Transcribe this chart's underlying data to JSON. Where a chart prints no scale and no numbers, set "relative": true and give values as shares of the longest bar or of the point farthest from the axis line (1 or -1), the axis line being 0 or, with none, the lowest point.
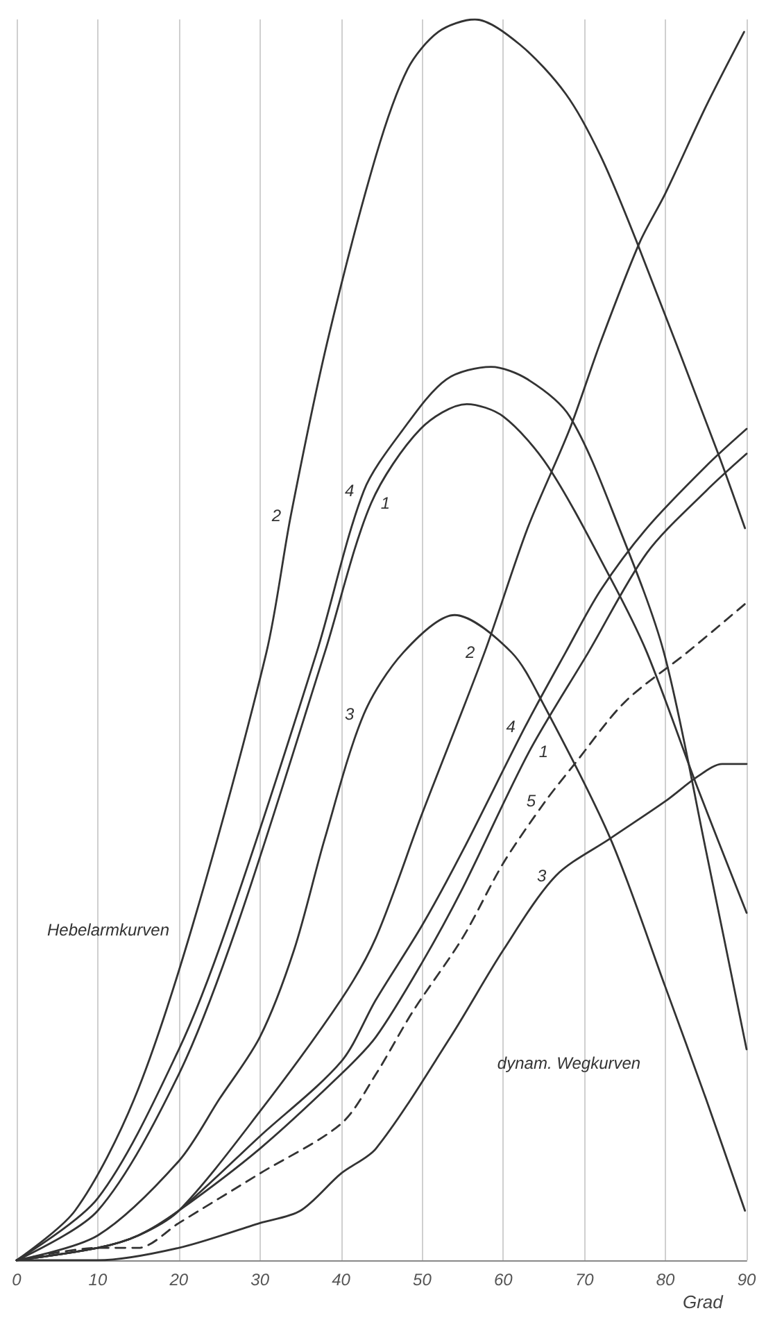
{
  "chart_data": {
    "type": "line",
    "relative": true,
    "xlabel": "Grad",
    "xlim": [
      0,
      90
    ],
    "xticks": [
      0,
      10,
      20,
      30,
      40,
      50,
      60,
      70,
      80,
      90
    ],
    "grid": "x",
    "series": [
      {
        "color": "#333333",
        "x": [
          0,
          7.2,
          14.5,
          21.7,
          30.8,
          33.8,
          38.3,
          44.3,
          48.2,
          52,
          56.5,
          62,
          67.7,
          72,
          76.5,
          86.5,
          89.8
        ],
        "values": [
          0,
          0.04,
          0.13,
          0.27,
          0.49,
          0.6,
          0.74,
          0.89,
          0.96,
          0.99,
          1,
          0.98,
          0.94,
          0.89,
          0.82,
          0.65,
          0.59
        ]
      },
      {
        "color": "#333333",
        "x": [
          0,
          10,
          20,
          26,
          37,
          42.8,
          47.7,
          53,
          58.5,
          63,
          68.2,
          74.3,
          79.8,
          85,
          90
        ],
        "values": [
          0,
          0.05,
          0.17,
          0.27,
          0.49,
          0.62,
          0.67,
          0.71,
          0.72,
          0.71,
          0.68,
          0.59,
          0.49,
          0.33,
          0.17
        ]
      },
      {
        "color": "#333333",
        "x": [
          0,
          10,
          20,
          27.2,
          38,
          43.7,
          49.8,
          55.5,
          60,
          65.5,
          73.2,
          77.7,
          84,
          90
        ],
        "values": [
          0,
          0.04,
          0.15,
          0.27,
          0.49,
          0.61,
          0.67,
          0.69,
          0.68,
          0.64,
          0.55,
          0.49,
          0.38,
          0.28
        ]
      },
      {
        "color": "#333333",
        "x": [
          0,
          10,
          20,
          25,
          30,
          34.2,
          38,
          42.8,
          47.7,
          54,
          61,
          64.8,
          73.2,
          80,
          85,
          89.8
        ],
        "values": [
          0,
          0.02,
          0.08,
          0.13,
          0.18,
          0.25,
          0.34,
          0.44,
          0.49,
          0.52,
          0.49,
          0.45,
          0.34,
          0.22,
          0.13,
          0.04
        ]
      },
      {
        "color": "#333333",
        "x": [
          0,
          10,
          15,
          20,
          30,
          40,
          44.3,
          50,
          57.7,
          63,
          68.2,
          72,
          76.8,
          80,
          85,
          89.7
        ],
        "values": [
          0,
          0.01,
          0.02,
          0.04,
          0.12,
          0.21,
          0.26,
          0.36,
          0.49,
          0.59,
          0.67,
          0.74,
          0.82,
          0.86,
          0.93,
          0.99
        ]
      },
      {
        "color": "#333333",
        "x": [
          0,
          10,
          15,
          20,
          30,
          40,
          44.3,
          50,
          55,
          62.7,
          67.7,
          72,
          77.7,
          85,
          90
        ],
        "values": [
          0,
          0.01,
          0.02,
          0.04,
          0.1,
          0.16,
          0.21,
          0.27,
          0.33,
          0.43,
          0.49,
          0.54,
          0.59,
          0.64,
          0.67
        ]
      },
      {
        "color": "#333333",
        "x": [
          0,
          10,
          15,
          20,
          30,
          40,
          44.3,
          50,
          55,
          63.2,
          70.5,
          77.7,
          85,
          90
        ],
        "values": [
          0,
          0.01,
          0.02,
          0.04,
          0.09,
          0.15,
          0.18,
          0.24,
          0.3,
          0.41,
          0.49,
          0.57,
          0.62,
          0.65
        ]
      },
      {
        "color": "#333333",
        "line_style": "dashed",
        "x": [
          0,
          10,
          15,
          20,
          30,
          40,
          44.3,
          48.8,
          55,
          60,
          65.2,
          68.8,
          75,
          82.7,
          90
        ],
        "values": [
          0,
          0.01,
          0.01,
          0.03,
          0.07,
          0.11,
          0.15,
          0.2,
          0.26,
          0.32,
          0.37,
          0.4,
          0.45,
          0.49,
          0.53
        ]
      },
      {
        "color": "#333333",
        "x": [
          0,
          10,
          20,
          30,
          35,
          40,
          44.3,
          53.5,
          60,
          66.5,
          73.2,
          80,
          84,
          87,
          90
        ],
        "values": [
          0,
          0,
          0.01,
          0.03,
          0.04,
          0.07,
          0.09,
          0.18,
          0.25,
          0.31,
          0.34,
          0.37,
          0.39,
          0.4,
          0.4
        ]
      }
    ],
    "annotations": [
      {
        "text": "2",
        "x": 33.8,
        "y": 0.6
      },
      {
        "text": "4",
        "x": 42.8,
        "y": 0.62
      },
      {
        "text": "1",
        "x": 43.7,
        "y": 0.61
      },
      {
        "text": "3",
        "x": 42.8,
        "y": 0.44
      },
      {
        "text": "2",
        "x": 57.7,
        "y": 0.49
      },
      {
        "text": "4",
        "x": 62.7,
        "y": 0.43
      },
      {
        "text": "1",
        "x": 63.2,
        "y": 0.41
      },
      {
        "text": "5",
        "x": 65.2,
        "y": 0.37
      },
      {
        "text": "3",
        "x": 66.5,
        "y": 0.31
      },
      "Hebelarmkurven",
      "dynam. Wegkurven"
    ]
  }
}
